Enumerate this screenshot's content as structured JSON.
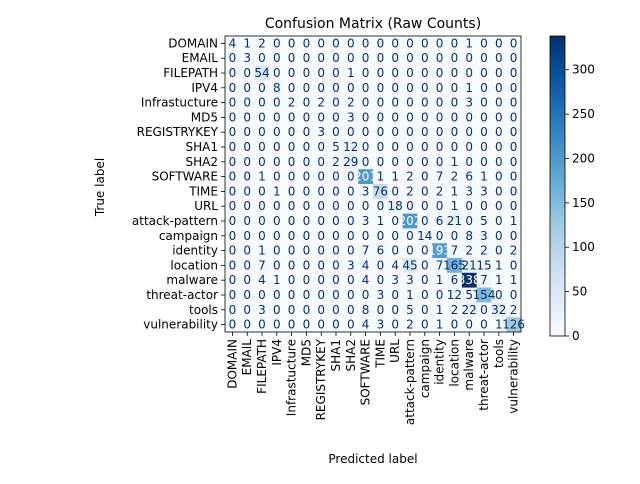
{
  "chart_data": {
    "type": "heatmap",
    "title": "Confusion Matrix (Raw Counts)",
    "xlabel": "Predicted label",
    "ylabel": "True label",
    "labels": [
      "DOMAIN",
      "EMAIL",
      "FILEPATH",
      "IPV4",
      "Infrastucture",
      "MD5",
      "REGISTRYKEY",
      "SHA1",
      "SHA2",
      "SOFTWARE",
      "TIME",
      "URL",
      "attack-pattern",
      "campaign",
      "identity",
      "location",
      "malware",
      "threat-actor",
      "tools",
      "vulnerability"
    ],
    "matrix": [
      [
        4,
        1,
        2,
        0,
        0,
        0,
        0,
        0,
        0,
        0,
        0,
        0,
        0,
        0,
        0,
        0,
        1,
        0,
        0,
        0
      ],
      [
        0,
        3,
        0,
        0,
        0,
        0,
        0,
        0,
        0,
        0,
        0,
        0,
        0,
        0,
        0,
        0,
        0,
        0,
        0,
        0
      ],
      [
        0,
        0,
        54,
        0,
        0,
        0,
        0,
        0,
        1,
        0,
        0,
        0,
        0,
        0,
        0,
        0,
        0,
        0,
        0,
        0
      ],
      [
        0,
        0,
        0,
        8,
        0,
        0,
        0,
        0,
        0,
        0,
        0,
        0,
        0,
        0,
        0,
        0,
        1,
        0,
        0,
        0
      ],
      [
        0,
        0,
        0,
        0,
        2,
        0,
        2,
        0,
        2,
        0,
        0,
        0,
        0,
        0,
        0,
        0,
        3,
        0,
        0,
        0
      ],
      [
        0,
        0,
        0,
        0,
        0,
        0,
        0,
        0,
        3,
        0,
        0,
        0,
        0,
        0,
        0,
        0,
        0,
        0,
        0,
        0
      ],
      [
        0,
        0,
        0,
        0,
        0,
        0,
        3,
        0,
        0,
        0,
        0,
        0,
        0,
        0,
        0,
        0,
        0,
        0,
        0,
        0
      ],
      [
        0,
        0,
        0,
        0,
        0,
        0,
        0,
        5,
        12,
        0,
        0,
        0,
        0,
        0,
        0,
        0,
        0,
        0,
        0,
        0
      ],
      [
        0,
        0,
        0,
        0,
        0,
        0,
        0,
        2,
        29,
        0,
        0,
        0,
        0,
        0,
        0,
        1,
        0,
        0,
        0,
        0
      ],
      [
        0,
        0,
        1,
        0,
        0,
        0,
        0,
        0,
        0,
        201,
        1,
        1,
        2,
        0,
        7,
        2,
        6,
        1,
        0,
        0
      ],
      [
        0,
        0,
        0,
        1,
        0,
        0,
        0,
        0,
        0,
        3,
        76,
        0,
        2,
        0,
        2,
        1,
        3,
        3,
        0,
        0
      ],
      [
        0,
        0,
        0,
        0,
        0,
        0,
        0,
        0,
        0,
        0,
        0,
        18,
        0,
        0,
        0,
        1,
        0,
        0,
        0,
        0
      ],
      [
        0,
        0,
        0,
        0,
        0,
        0,
        0,
        0,
        0,
        3,
        1,
        0,
        202,
        0,
        6,
        21,
        0,
        5,
        0,
        1
      ],
      [
        0,
        0,
        0,
        0,
        0,
        0,
        0,
        0,
        0,
        0,
        0,
        0,
        0,
        14,
        0,
        0,
        8,
        3,
        0,
        0
      ],
      [
        0,
        0,
        1,
        0,
        0,
        0,
        0,
        0,
        0,
        7,
        6,
        0,
        0,
        0,
        193,
        7,
        2,
        2,
        0,
        2
      ],
      [
        0,
        0,
        7,
        0,
        0,
        0,
        0,
        0,
        3,
        4,
        0,
        4,
        45,
        0,
        7,
        165,
        21,
        15,
        1,
        0
      ],
      [
        0,
        0,
        4,
        1,
        0,
        0,
        0,
        0,
        0,
        4,
        0,
        3,
        3,
        0,
        1,
        6,
        338,
        7,
        1,
        1
      ],
      [
        0,
        0,
        0,
        0,
        0,
        0,
        0,
        0,
        0,
        0,
        3,
        0,
        1,
        0,
        0,
        12,
        5,
        154,
        0,
        0
      ],
      [
        0,
        0,
        3,
        0,
        0,
        0,
        0,
        0,
        0,
        8,
        0,
        0,
        5,
        0,
        1,
        2,
        22,
        0,
        32,
        2
      ],
      [
        0,
        0,
        0,
        0,
        0,
        0,
        0,
        0,
        0,
        4,
        3,
        0,
        2,
        0,
        1,
        0,
        0,
        0,
        1,
        126
      ]
    ],
    "colormap": "Blues",
    "vmin": 0,
    "vmax": 338,
    "colorbar_ticks": [
      0,
      50,
      100,
      150,
      200,
      250,
      300
    ],
    "colors": {
      "low": "#f7fbff",
      "high": "#08306b",
      "text_dark": "#08306b",
      "text_light": "#ffffff"
    }
  }
}
